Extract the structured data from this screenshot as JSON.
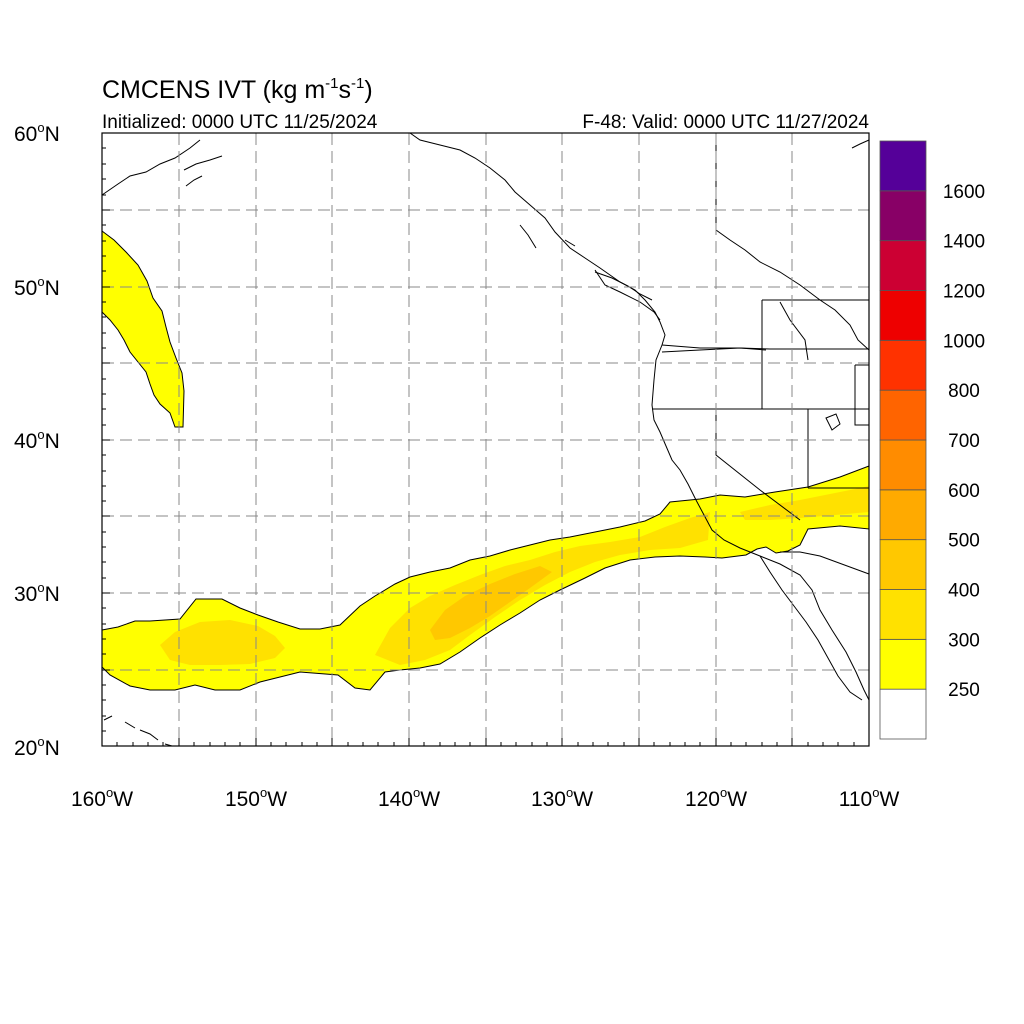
{
  "title": {
    "main": "CMCENS IVT (kg m",
    "exp1": "-1",
    "mid": "s",
    "exp2": "-1",
    "end": ")"
  },
  "initialized": "Initialized: 0000 UTC 11/25/2024",
  "valid": "F-48: Valid: 0000 UTC 11/27/2024",
  "lat_labels": [
    {
      "deg": "60",
      "hemi": "N"
    },
    {
      "deg": "50",
      "hemi": "N"
    },
    {
      "deg": "40",
      "hemi": "N"
    },
    {
      "deg": "30",
      "hemi": "N"
    },
    {
      "deg": "20",
      "hemi": "N"
    }
  ],
  "lon_labels": [
    {
      "deg": "160",
      "hemi": "W"
    },
    {
      "deg": "150",
      "hemi": "W"
    },
    {
      "deg": "140",
      "hemi": "W"
    },
    {
      "deg": "130",
      "hemi": "W"
    },
    {
      "deg": "120",
      "hemi": "W"
    },
    {
      "deg": "110",
      "hemi": "W"
    }
  ],
  "colorbar": {
    "colors": [
      "#ffffff",
      "#ffff00",
      "#ffe100",
      "#ffc800",
      "#ffaa00",
      "#ff8c00",
      "#ff6400",
      "#ff3200",
      "#ee0000",
      "#cc0033",
      "#880066",
      "#550099"
    ],
    "labels": [
      "250",
      "300",
      "400",
      "500",
      "600",
      "700",
      "800",
      "1000",
      "1200",
      "1400",
      "1600"
    ]
  },
  "map": {
    "lon_range": [
      -160,
      -110
    ],
    "lat_range": [
      20,
      60
    ],
    "land_color": "#ffffff",
    "ivt_colors": {
      "250": "#ffff00",
      "300": "#ffe100",
      "400": "#ffc800"
    }
  }
}
